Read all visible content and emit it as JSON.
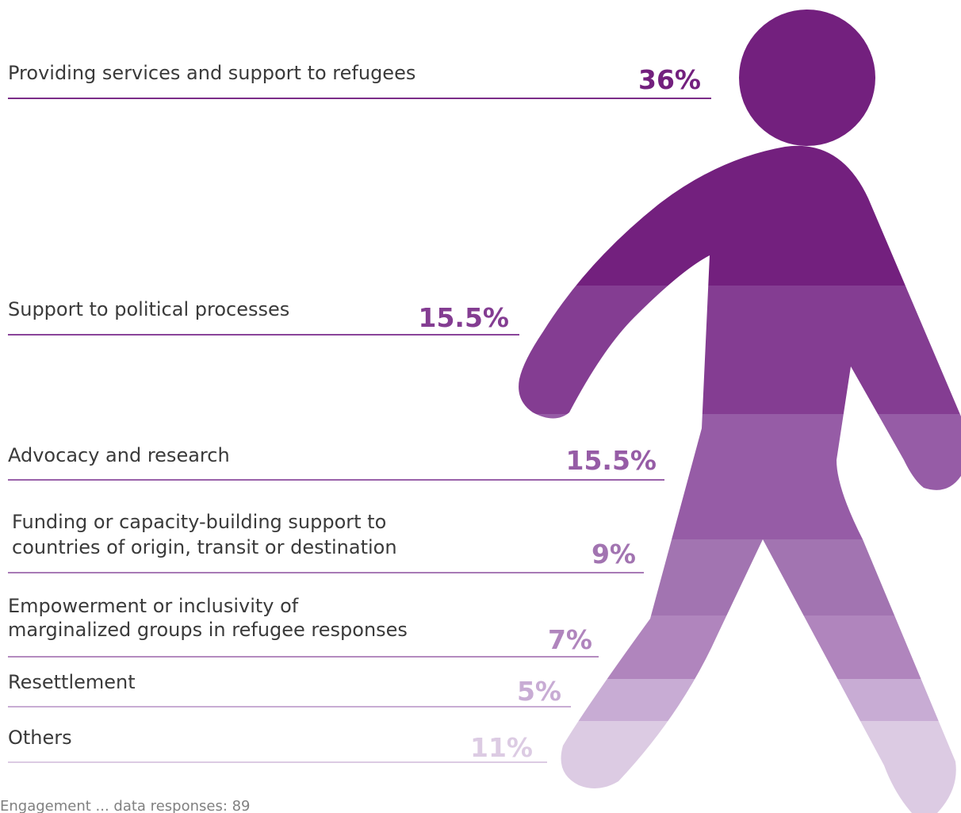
{
  "chart_data": {
    "type": "pictogram",
    "categories": [
      "Providing services and support to refugees",
      "Support to political processes",
      "Advocacy and research",
      "Funding or capacity-building support to countries of origin, transit or destination",
      "Empowerment or inclusivity of marginalized groups in refugee responses",
      "Resettlement",
      "Others"
    ],
    "values": [
      36,
      15.5,
      15.5,
      9,
      7,
      5,
      11
    ],
    "value_labels": [
      "36%",
      "15.5%",
      "15.5%",
      "9%",
      "7%",
      "5%",
      "11%"
    ],
    "label_lines": [
      [
        "Providing services and support to refugees"
      ],
      [
        "Support to political processes"
      ],
      [
        "Advocacy and research"
      ],
      [
        "Funding or capacity-building support to",
        "countries of origin, transit or destination"
      ],
      [
        "Empowerment or inclusivity of",
        "marginalized groups in refugee responses"
      ],
      [
        "Resettlement"
      ],
      [
        "Others"
      ]
    ],
    "colors": [
      "#73207e",
      "#843d92",
      "#965ca6",
      "#a274b1",
      "#b085bd",
      "#c8acd4",
      "#dccbe3"
    ],
    "footer_note": "Engagement ... data responses: 89"
  }
}
